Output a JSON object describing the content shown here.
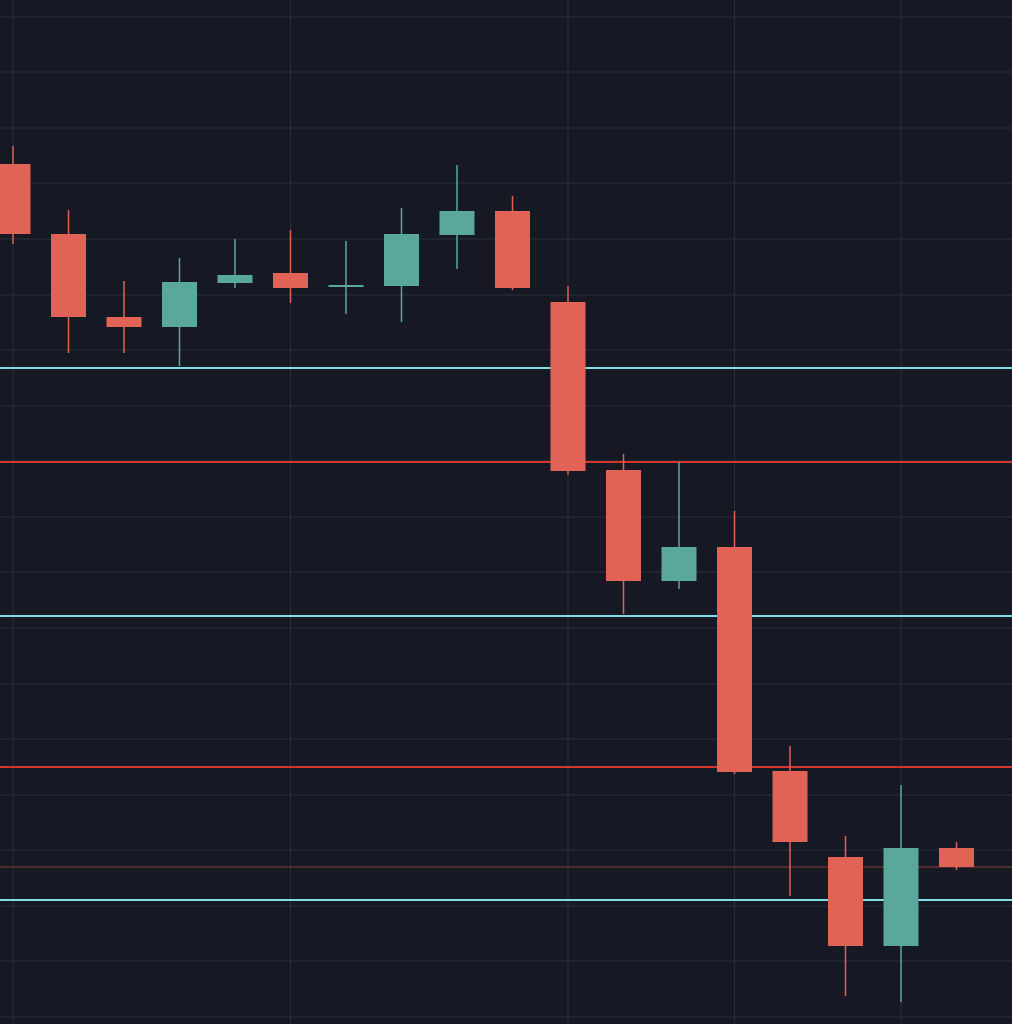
{
  "colors": {
    "background": "#161824",
    "grid": "#2a2e3b",
    "up": "#5aa79c",
    "down": "#e06356",
    "support": "#7fdfe6",
    "resistance": "#d2372b",
    "last_price": "#8f3a35"
  },
  "chart_data": {
    "type": "candlestick",
    "grid": true,
    "ylim": [
      0,
      1024
    ],
    "candles": [
      {
        "i": 0,
        "open": 860,
        "close": 790,
        "high": 878,
        "low": 780
      },
      {
        "i": 1,
        "open": 790,
        "close": 707,
        "high": 814,
        "low": 671
      },
      {
        "i": 2,
        "open": 707,
        "close": 697,
        "high": 743,
        "low": 671
      },
      {
        "i": 3,
        "open": 697,
        "close": 742,
        "high": 766,
        "low": 658
      },
      {
        "i": 4,
        "open": 741,
        "close": 749,
        "high": 785,
        "low": 736
      },
      {
        "i": 5,
        "open": 751,
        "close": 736,
        "high": 794,
        "low": 721
      },
      {
        "i": 6,
        "open": 737,
        "close": 739,
        "high": 783,
        "low": 710
      },
      {
        "i": 7,
        "open": 738,
        "close": 790,
        "high": 816,
        "low": 702
      },
      {
        "i": 8,
        "open": 789,
        "close": 813,
        "high": 859,
        "low": 755
      },
      {
        "i": 9,
        "open": 813,
        "close": 736,
        "high": 828,
        "low": 734
      },
      {
        "i": 10,
        "open": 722,
        "close": 553,
        "high": 738,
        "low": 549
      },
      {
        "i": 11,
        "open": 554,
        "close": 443,
        "high": 570,
        "low": 410
      },
      {
        "i": 12,
        "open": 443,
        "close": 477,
        "high": 562,
        "low": 435
      },
      {
        "i": 13,
        "open": 477,
        "close": 252,
        "high": 513,
        "low": 250
      },
      {
        "i": 14,
        "open": 253,
        "close": 182,
        "high": 278,
        "low": 128
      },
      {
        "i": 15,
        "open": 167,
        "close": 78,
        "high": 188,
        "low": 28
      },
      {
        "i": 16,
        "open": 78,
        "close": 176,
        "high": 239,
        "low": 22
      },
      {
        "i": 17,
        "open": 176,
        "close": 157,
        "high": 182,
        "low": 154
      }
    ],
    "horizontal_lines": [
      {
        "kind": "support",
        "value": 656
      },
      {
        "kind": "resistance",
        "value": 562
      },
      {
        "kind": "support",
        "value": 408
      },
      {
        "kind": "resistance",
        "value": 257
      },
      {
        "kind": "last_price",
        "value": 157
      },
      {
        "kind": "support",
        "value": 124
      }
    ],
    "x_grid_indices": [
      0,
      5,
      10,
      13,
      16
    ],
    "y_grid_values": [
      1007,
      952,
      896,
      841,
      785,
      729,
      674,
      618,
      563,
      507,
      452,
      396,
      340,
      285,
      229,
      174,
      118,
      63,
      7
    ]
  }
}
